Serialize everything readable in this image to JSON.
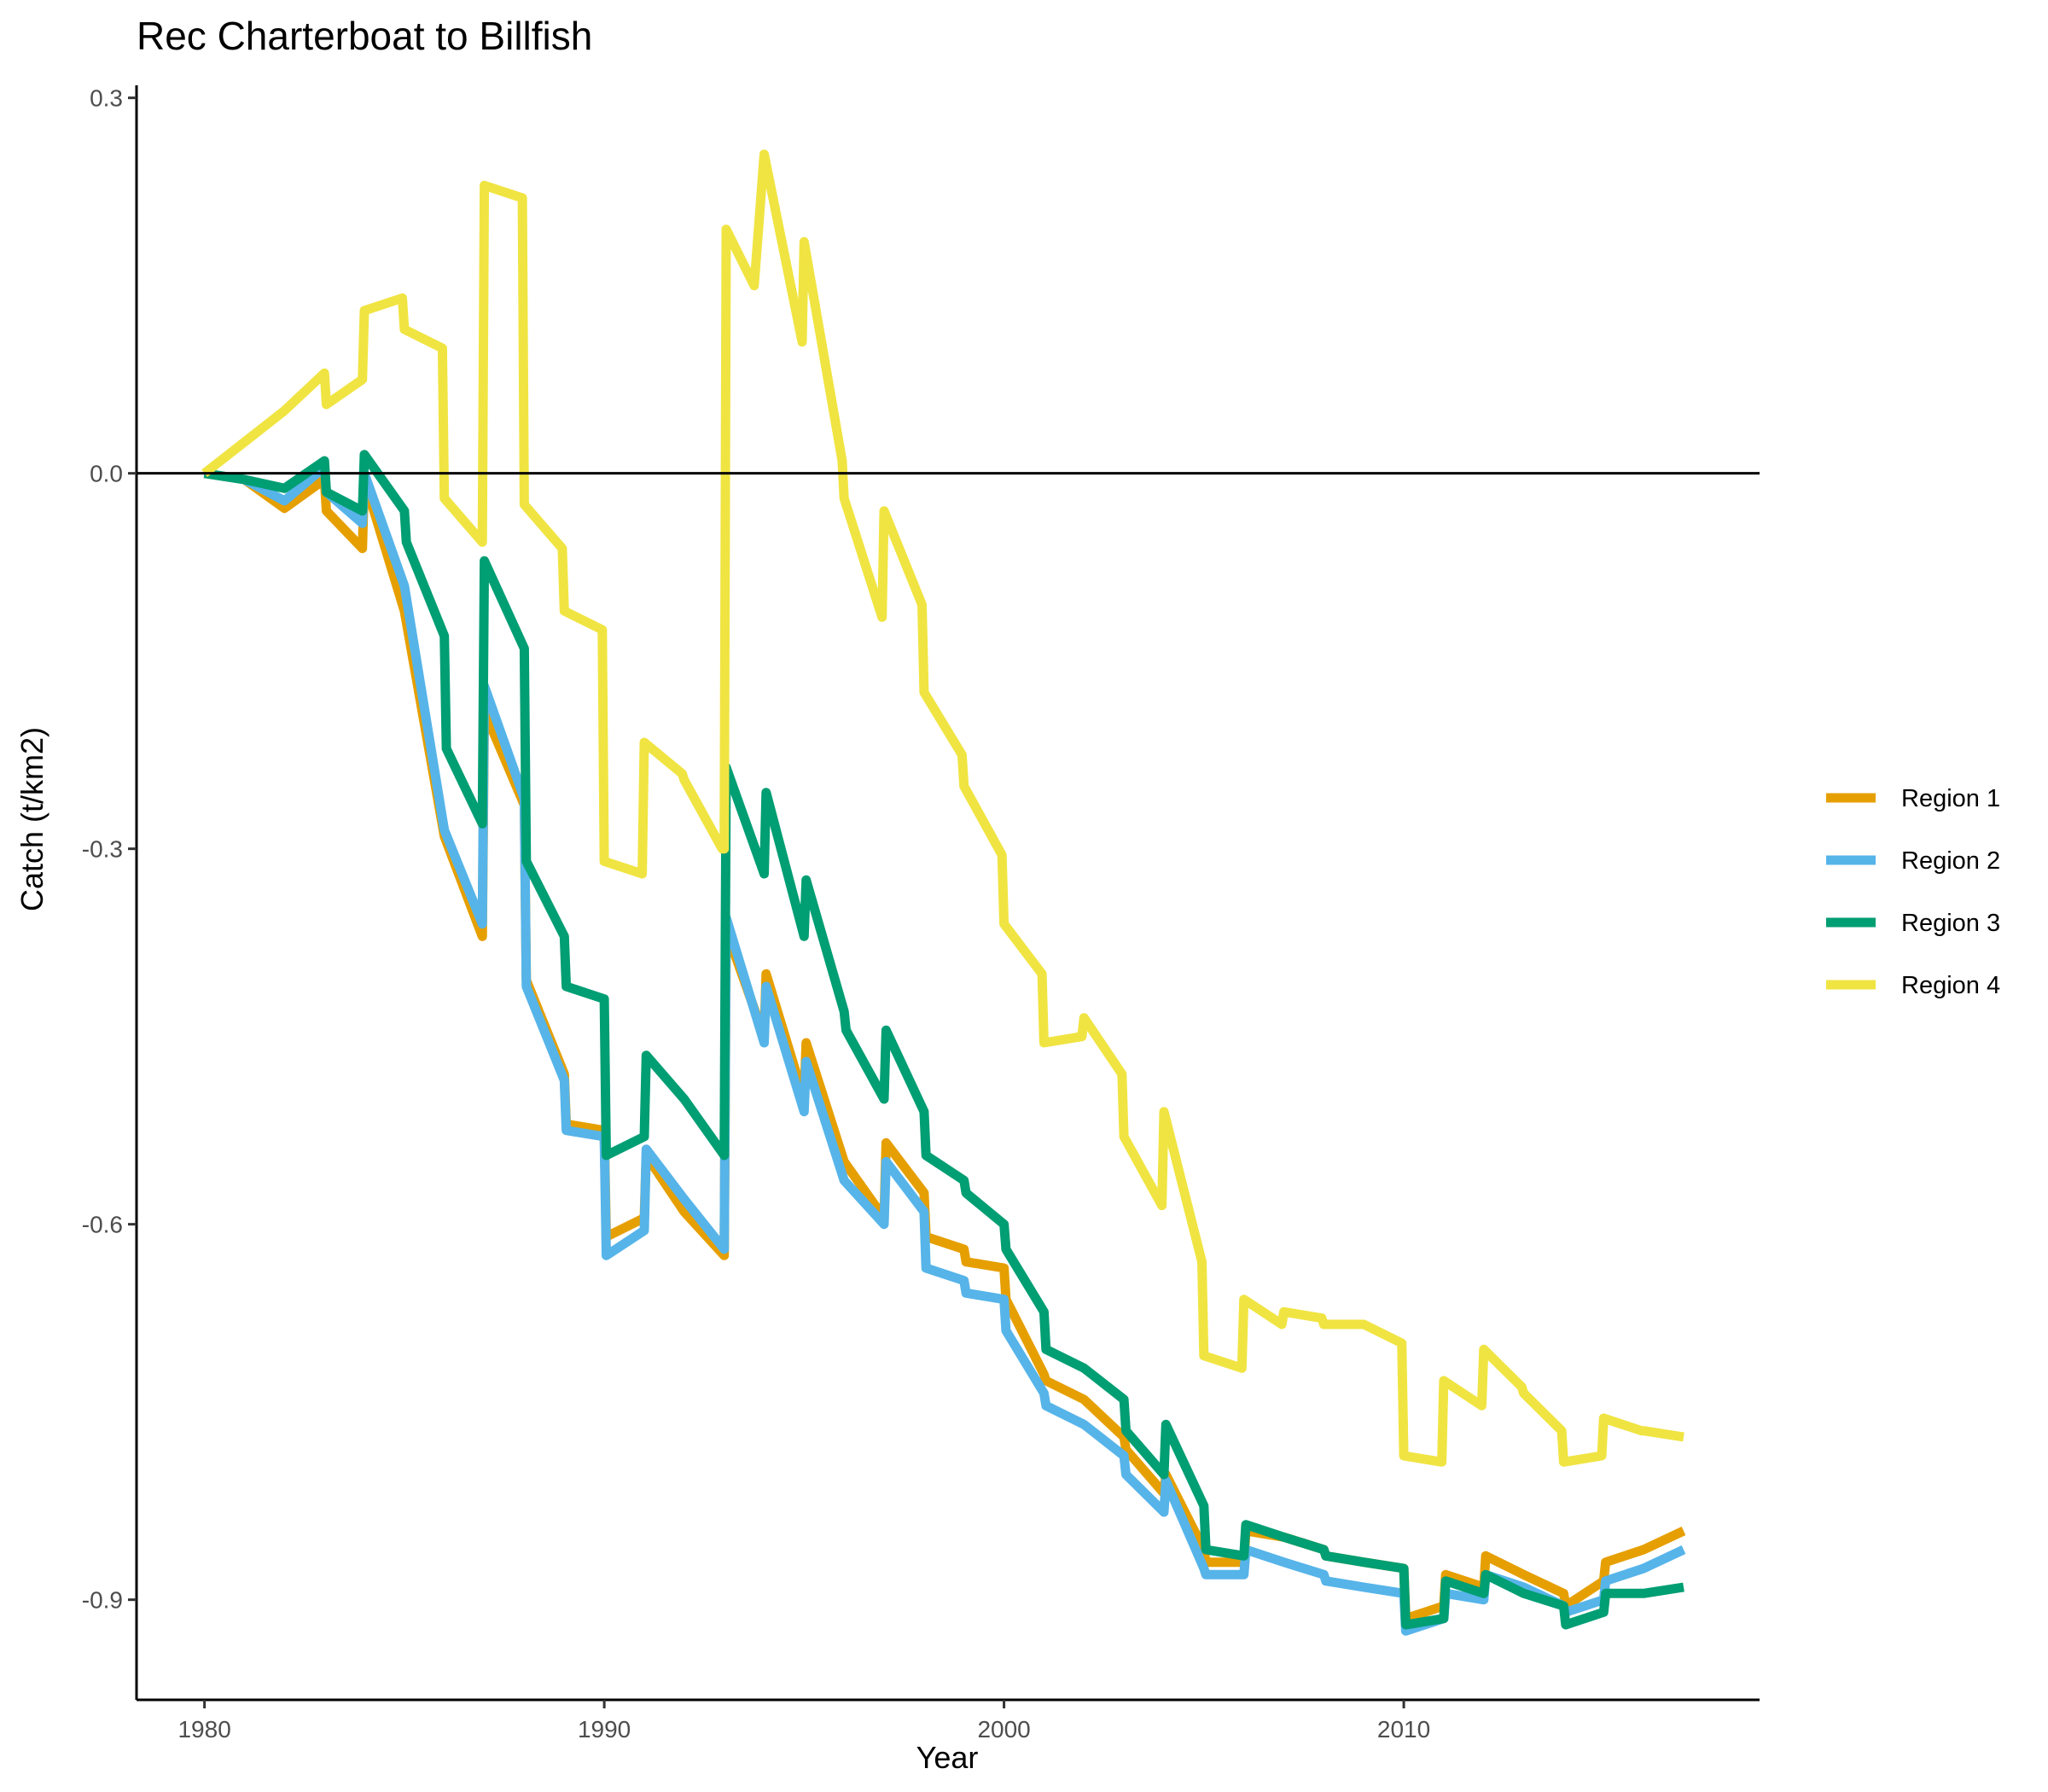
{
  "chart_data": {
    "type": "line",
    "title": "Rec Charterboat to Billfish",
    "xlabel": "Year",
    "ylabel": "Catch (t/km2)",
    "xlim": [
      1978.3,
      2018.9
    ],
    "ylim": [
      -0.98,
      0.31
    ],
    "xticks": [
      1980,
      1990,
      2000,
      2010
    ],
    "yticks": [
      0.3,
      0.0,
      -0.3,
      -0.6,
      -0.9
    ],
    "ytick_labels": [
      "0.3",
      "0.0",
      "-0.3",
      "-0.6",
      "-0.9"
    ],
    "hline": 0,
    "legend_position": "right",
    "grid": false,
    "series": [
      {
        "name": "Region 1",
        "color": "#E69F00",
        "x": [
          1980,
          1981,
          1982,
          1983,
          1983.05,
          1983.95,
          1984,
          1985,
          1986,
          1986.95,
          1987,
          1988,
          1988.05,
          1989,
          1989.05,
          1990,
          1990.05,
          1991,
          1991.05,
          1992,
          1993,
          1993.05,
          1994,
          1994.05,
          1995,
          1995.05,
          1996,
          1997,
          1997.05,
          1998,
          1998.05,
          1999,
          1999.05,
          2000,
          2000.05,
          2001,
          2001.05,
          2002,
          2003,
          2003.05,
          2004,
          2004.05,
          2005,
          2005.05,
          2006,
          2006.05,
          2007,
          2008,
          2008.05,
          2009,
          2010,
          2010.05,
          2011,
          2011.05,
          2012,
          2012.05,
          2013,
          2014,
          2014.05,
          2015,
          2015.05,
          2016,
          2017
        ],
        "y": [
          0.0,
          -0.005,
          -0.028,
          -0.005,
          -0.03,
          -0.06,
          -0.005,
          -0.11,
          -0.29,
          -0.37,
          -0.19,
          -0.265,
          -0.405,
          -0.48,
          -0.52,
          -0.525,
          -0.61,
          -0.595,
          -0.545,
          -0.59,
          -0.625,
          -0.365,
          -0.45,
          -0.4,
          -0.5,
          -0.455,
          -0.55,
          -0.595,
          -0.535,
          -0.575,
          -0.61,
          -0.62,
          -0.63,
          -0.635,
          -0.66,
          -0.72,
          -0.725,
          -0.74,
          -0.77,
          -0.78,
          -0.815,
          -0.8,
          -0.86,
          -0.87,
          -0.87,
          -0.845,
          -0.85,
          -0.86,
          -0.865,
          -0.87,
          -0.875,
          -0.915,
          -0.905,
          -0.88,
          -0.89,
          -0.865,
          -0.88,
          -0.895,
          -0.905,
          -0.885,
          -0.87,
          -0.86,
          -0.845
        ]
      },
      {
        "name": "Region 2",
        "color": "#56B4E9",
        "x": [
          1980,
          1981,
          1982,
          1983,
          1983.05,
          1983.95,
          1984,
          1985,
          1986,
          1986.95,
          1987,
          1988,
          1988.05,
          1989,
          1989.05,
          1990,
          1990.05,
          1991,
          1991.05,
          1992,
          1993,
          1993.05,
          1994,
          1994.05,
          1995,
          1995.05,
          1996,
          1997,
          1997.05,
          1998,
          1998.05,
          1999,
          1999.05,
          2000,
          2000.05,
          2001,
          2001.05,
          2002,
          2003,
          2003.05,
          2004,
          2004.05,
          2005,
          2005.05,
          2006,
          2006.05,
          2007,
          2008,
          2008.05,
          2009,
          2010,
          2010.05,
          2011,
          2011.05,
          2012,
          2012.05,
          2013,
          2014,
          2014.05,
          2015,
          2015.05,
          2016,
          2017
        ],
        "y": [
          0.0,
          -0.005,
          -0.022,
          0.005,
          -0.015,
          -0.04,
          0.0,
          -0.09,
          -0.285,
          -0.36,
          -0.17,
          -0.26,
          -0.41,
          -0.485,
          -0.525,
          -0.53,
          -0.625,
          -0.605,
          -0.54,
          -0.58,
          -0.62,
          -0.355,
          -0.455,
          -0.41,
          -0.51,
          -0.47,
          -0.565,
          -0.6,
          -0.55,
          -0.59,
          -0.635,
          -0.645,
          -0.655,
          -0.66,
          -0.685,
          -0.735,
          -0.745,
          -0.76,
          -0.785,
          -0.8,
          -0.83,
          -0.805,
          -0.875,
          -0.88,
          -0.88,
          -0.86,
          -0.87,
          -0.88,
          -0.885,
          -0.89,
          -0.895,
          -0.925,
          -0.915,
          -0.895,
          -0.9,
          -0.88,
          -0.89,
          -0.905,
          -0.91,
          -0.9,
          -0.885,
          -0.875,
          -0.86
        ]
      },
      {
        "name": "Region 3",
        "color": "#009E73",
        "x": [
          1980,
          1981,
          1982,
          1983,
          1983.05,
          1983.95,
          1984,
          1985,
          1985.05,
          1986,
          1986.05,
          1986.95,
          1987,
          1988,
          1988.05,
          1989,
          1989.05,
          1990,
          1990.05,
          1991,
          1991.05,
          1992,
          1993,
          1993.05,
          1994,
          1994.05,
          1995,
          1995.05,
          1996,
          1996.05,
          1997,
          1997.05,
          1998,
          1998.05,
          1999,
          1999.05,
          2000,
          2000.05,
          2001,
          2001.05,
          2002,
          2003,
          2003.05,
          2004,
          2004.05,
          2005,
          2005.05,
          2006,
          2006.05,
          2007,
          2008,
          2008.05,
          2009,
          2010,
          2010.05,
          2011,
          2011.05,
          2012,
          2012.05,
          2013,
          2014,
          2014.05,
          2015,
          2015.05,
          2016,
          2017
        ],
        "y": [
          0.0,
          -0.005,
          -0.012,
          0.01,
          -0.015,
          -0.03,
          0.015,
          -0.03,
          -0.055,
          -0.13,
          -0.22,
          -0.28,
          -0.07,
          -0.14,
          -0.31,
          -0.37,
          -0.41,
          -0.42,
          -0.545,
          -0.53,
          -0.465,
          -0.5,
          -0.545,
          -0.235,
          -0.32,
          -0.255,
          -0.37,
          -0.325,
          -0.43,
          -0.445,
          -0.5,
          -0.445,
          -0.51,
          -0.545,
          -0.565,
          -0.575,
          -0.6,
          -0.62,
          -0.67,
          -0.7,
          -0.715,
          -0.74,
          -0.765,
          -0.8,
          -0.76,
          -0.825,
          -0.86,
          -0.865,
          -0.84,
          -0.85,
          -0.86,
          -0.865,
          -0.87,
          -0.875,
          -0.92,
          -0.915,
          -0.885,
          -0.895,
          -0.88,
          -0.895,
          -0.905,
          -0.92,
          -0.91,
          -0.895,
          -0.895,
          -0.89
        ]
      },
      {
        "name": "Region 4",
        "color": "#F0E442",
        "x": [
          1980,
          1981,
          1982,
          1983,
          1983.05,
          1983.95,
          1984,
          1984.95,
          1985,
          1985.95,
          1986,
          1986.95,
          1987,
          1987.95,
          1988,
          1988.95,
          1989,
          1989.95,
          1990,
          1990.95,
          1991,
          1991.95,
          1992,
          1992.95,
          1993,
          1993.05,
          1993.75,
          1994,
          1994.95,
          1995,
          1995.95,
          1996,
          1996.95,
          1997,
          1997.95,
          1998,
          1998.95,
          1999,
          1999.95,
          2000,
          2000.95,
          2001,
          2001.95,
          2002,
          2002.95,
          2003,
          2003.95,
          2004,
          2004.95,
          2005,
          2005.95,
          2006,
          2006.95,
          2007,
          2007.95,
          2008,
          2008.95,
          2009,
          2009.95,
          2010,
          2010.95,
          2011,
          2011.95,
          2012,
          2012.95,
          2013,
          2013.95,
          2014,
          2014.95,
          2015,
          2015.95,
          2016,
          2017
        ],
        "y": [
          0.0,
          0.025,
          0.05,
          0.08,
          0.055,
          0.075,
          0.13,
          0.14,
          0.115,
          0.1,
          -0.02,
          -0.055,
          0.23,
          0.22,
          -0.025,
          -0.06,
          -0.11,
          -0.125,
          -0.31,
          -0.32,
          -0.215,
          -0.24,
          -0.245,
          -0.3,
          -0.3,
          0.195,
          0.15,
          0.255,
          0.105,
          0.185,
          0.01,
          -0.02,
          -0.115,
          -0.03,
          -0.105,
          -0.175,
          -0.225,
          -0.25,
          -0.305,
          -0.36,
          -0.4,
          -0.455,
          -0.45,
          -0.435,
          -0.48,
          -0.53,
          -0.585,
          -0.51,
          -0.63,
          -0.705,
          -0.715,
          -0.66,
          -0.68,
          -0.67,
          -0.675,
          -0.68,
          -0.68,
          -0.68,
          -0.695,
          -0.785,
          -0.79,
          -0.725,
          -0.745,
          -0.7,
          -0.73,
          -0.735,
          -0.765,
          -0.79,
          -0.785,
          -0.755,
          -0.765,
          -0.765,
          -0.77
        ]
      }
    ]
  }
}
